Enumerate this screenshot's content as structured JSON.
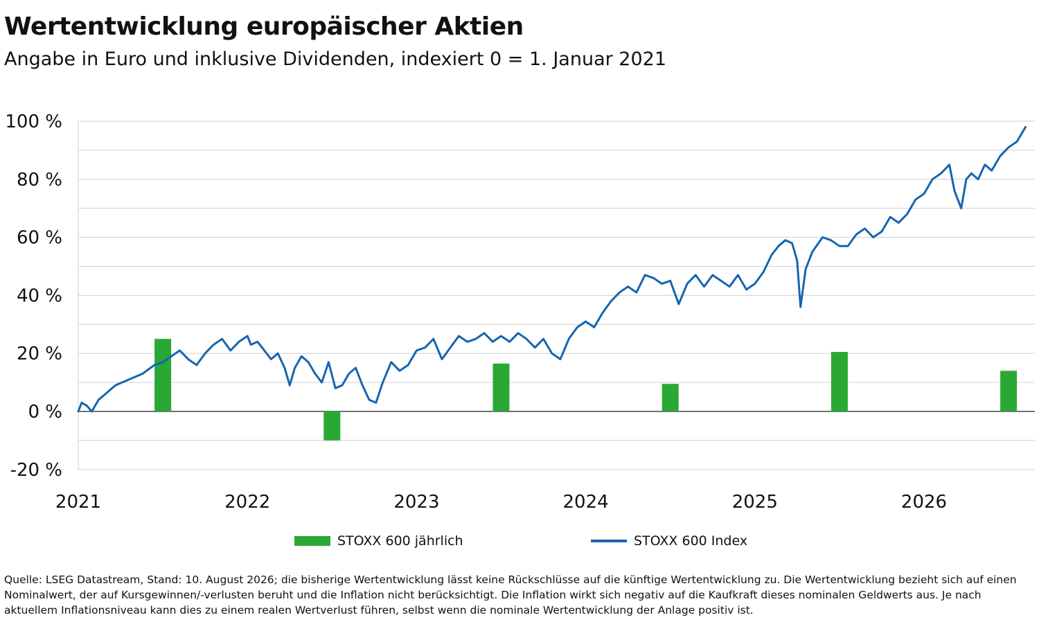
{
  "chart_data": {
    "type": "bar+line",
    "title": "Wertentwicklung europäischer Aktien",
    "subtitle": "Angabe in Euro und inklusive Dividenden, indexiert 0 = 1. Januar 2021",
    "y_ticks": [
      "100 %",
      "80 %",
      "60 %",
      "40 %",
      "20 %",
      "0 %",
      "-20 %"
    ],
    "y_tick_values": [
      100,
      80,
      60,
      40,
      20,
      0,
      -20
    ],
    "ylim": [
      -20,
      100
    ],
    "x_ticks": [
      "2021",
      "2022",
      "2023",
      "2024",
      "2025",
      "2026"
    ],
    "x_tick_values": [
      2021,
      2022,
      2023,
      2024,
      2025,
      2026
    ],
    "xlim": [
      2021,
      2026.6
    ],
    "grid": true,
    "legend_position": "bottom",
    "series": [
      {
        "name": "STOXX 600 jährlich",
        "type": "bar",
        "color": "#2aa836",
        "x": [
          2021.5,
          2022.5,
          2023.5,
          2024.5,
          2025.5,
          2026.5
        ],
        "values": [
          25,
          -10,
          16.5,
          9.5,
          20.5,
          14
        ]
      },
      {
        "name": "STOXX 600 Index",
        "type": "line",
        "color": "#1565b0",
        "x": [
          2021.0,
          2021.02,
          2021.05,
          2021.08,
          2021.12,
          2021.16,
          2021.22,
          2021.3,
          2021.38,
          2021.45,
          2021.5,
          2021.55,
          2021.6,
          2021.65,
          2021.7,
          2021.75,
          2021.8,
          2021.85,
          2021.9,
          2021.95,
          2022.0,
          2022.02,
          2022.06,
          2022.1,
          2022.14,
          2022.18,
          2022.22,
          2022.25,
          2022.28,
          2022.32,
          2022.36,
          2022.4,
          2022.44,
          2022.48,
          2022.52,
          2022.56,
          2022.6,
          2022.64,
          2022.68,
          2022.72,
          2022.76,
          2022.8,
          2022.85,
          2022.9,
          2022.95,
          2023.0,
          2023.05,
          2023.1,
          2023.15,
          2023.2,
          2023.25,
          2023.3,
          2023.35,
          2023.4,
          2023.45,
          2023.5,
          2023.55,
          2023.6,
          2023.65,
          2023.7,
          2023.75,
          2023.8,
          2023.85,
          2023.9,
          2023.95,
          2024.0,
          2024.05,
          2024.1,
          2024.15,
          2024.2,
          2024.25,
          2024.3,
          2024.35,
          2024.4,
          2024.45,
          2024.5,
          2024.55,
          2024.6,
          2024.65,
          2024.7,
          2024.75,
          2024.8,
          2024.85,
          2024.9,
          2024.95,
          2025.0,
          2025.05,
          2025.1,
          2025.14,
          2025.18,
          2025.22,
          2025.25,
          2025.27,
          2025.3,
          2025.34,
          2025.4,
          2025.45,
          2025.5,
          2025.55,
          2025.6,
          2025.65,
          2025.7,
          2025.75,
          2025.8,
          2025.85,
          2025.9,
          2025.95,
          2026.0,
          2026.05,
          2026.1,
          2026.15,
          2026.18,
          2026.2,
          2026.22,
          2026.25,
          2026.28,
          2026.32,
          2026.36,
          2026.4,
          2026.45,
          2026.5,
          2026.55,
          2026.6
        ],
        "values": [
          0,
          3,
          2,
          0,
          4,
          6,
          9,
          11,
          13,
          16,
          17,
          19,
          21,
          18,
          16,
          20,
          23,
          25,
          21,
          24,
          26,
          23,
          24,
          21,
          18,
          20,
          15,
          9,
          15,
          19,
          17,
          13,
          10,
          17,
          8,
          9,
          13,
          15,
          9,
          4,
          3,
          10,
          17,
          14,
          16,
          21,
          22,
          25,
          18,
          22,
          26,
          24,
          25,
          27,
          24,
          26,
          24,
          27,
          25,
          22,
          25,
          20,
          18,
          25,
          29,
          31,
          29,
          34,
          38,
          41,
          43,
          41,
          47,
          46,
          44,
          45,
          37,
          44,
          47,
          43,
          47,
          45,
          43,
          47,
          42,
          44,
          48,
          54,
          57,
          59,
          58,
          52,
          36,
          49,
          55,
          60,
          59,
          57,
          57,
          61,
          63,
          60,
          62,
          67,
          65,
          68,
          73,
          75,
          80,
          82,
          85,
          76,
          73,
          70,
          80,
          82,
          80,
          85,
          83,
          88,
          91,
          93,
          98
        ]
      }
    ]
  },
  "legend": {
    "bar_label": "STOXX 600 jährlich",
    "line_label": "STOXX 600 Index"
  },
  "footnote": "Quelle: LSEG Datastream, Stand: 10. August 2026; die bisherige Wertentwicklung lässt keine Rückschlüsse auf die künftige Wertentwicklung zu. Die Wertentwicklung bezieht sich auf einen Nominalwert, der auf Kursgewinnen/-verlusten beruht und die Inflation nicht berücksichtigt. Die Inflation wirkt sich negativ auf die Kaufkraft dieses nominalen Geldwerts aus. Je nach aktuellem Inflationsniveau kann dies zu einem realen Wertverlust führen, selbst wenn die nominale Wertentwicklung der Anlage positiv ist."
}
